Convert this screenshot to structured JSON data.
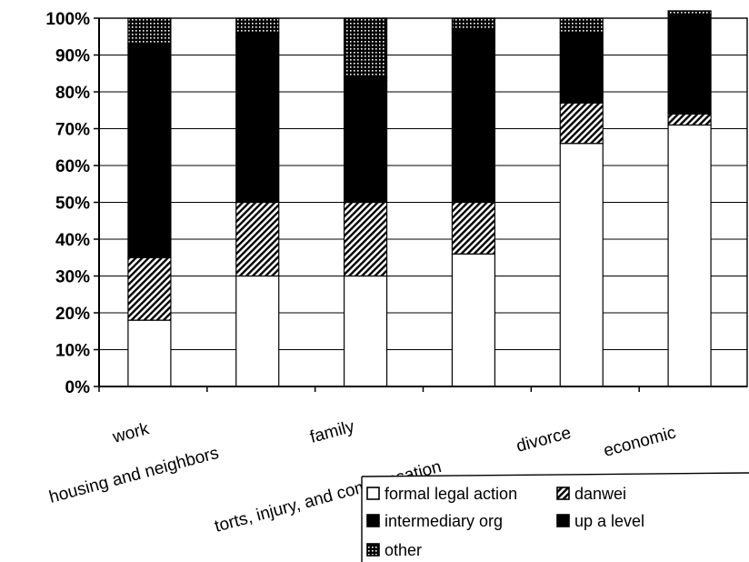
{
  "chart_data": {
    "type": "bar",
    "stacked": true,
    "percent": true,
    "title": "",
    "xlabel": "",
    "ylabel": "",
    "ylim": [
      0,
      100
    ],
    "yticks": [
      "0%",
      "10%",
      "20%",
      "30%",
      "40%",
      "50%",
      "60%",
      "70%",
      "80%",
      "90%",
      "100%"
    ],
    "categories": [
      "work",
      "housing and neighbors",
      "family",
      "torts, injury, and compensation",
      "divorce",
      "economic"
    ],
    "series": [
      {
        "name": "formal legal action",
        "fill": "white",
        "values": [
          18,
          30,
          30,
          36,
          66,
          71
        ]
      },
      {
        "name": "danwei",
        "fill": "hatch",
        "values": [
          17,
          20,
          20,
          14,
          11,
          3
        ]
      },
      {
        "name": "intermediary org",
        "fill": "black",
        "values": [
          57,
          45,
          33,
          46,
          18,
          26
        ]
      },
      {
        "name": "up a level",
        "fill": "black",
        "values": [
          1,
          1,
          1,
          1,
          1,
          1
        ]
      },
      {
        "name": "other",
        "fill": "dotted",
        "values": [
          7,
          4,
          16,
          3,
          4,
          1
        ]
      }
    ],
    "grid": true,
    "legend_position": "bottom-right"
  },
  "colors": {
    "background": "#ffffff",
    "ink": "#000000",
    "grid": "#000000"
  }
}
